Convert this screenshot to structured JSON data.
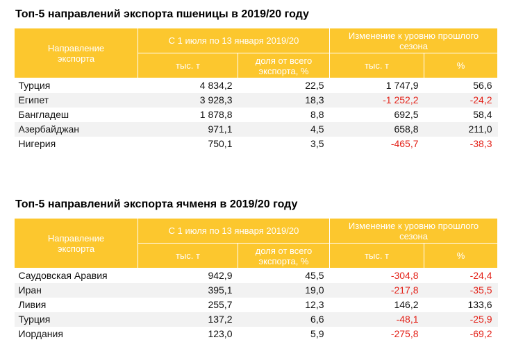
{
  "tables": [
    {
      "title": "Топ-5 направлений экспорта пшеницы в 2019/20 году",
      "headers": {
        "direction": "Направление экспорта",
        "period": "С 1 июля по 13 января 2019/20",
        "change": "Изменение к уровню прошлого сезона",
        "thousand_t": "тыс. т",
        "share": "доля от всего экспорта, %",
        "change_thousand_t": "тыс. т",
        "change_pct": "%"
      },
      "rows": [
        {
          "country": "Турция",
          "volume": "4 834,2",
          "share": "22,5",
          "change_t": "1 747,9",
          "change_pct": "56,6",
          "neg_t": false,
          "neg_pct": false
        },
        {
          "country": "Египет",
          "volume": "3 928,3",
          "share": "18,3",
          "change_t": "-1 252,2",
          "change_pct": "-24,2",
          "neg_t": true,
          "neg_pct": true
        },
        {
          "country": "Бангладеш",
          "volume": "1 878,8",
          "share": "8,8",
          "change_t": "692,5",
          "change_pct": "58,4",
          "neg_t": false,
          "neg_pct": false
        },
        {
          "country": "Азербайджан",
          "volume": "971,1",
          "share": "4,5",
          "change_t": "658,8",
          "change_pct": "211,0",
          "neg_t": false,
          "neg_pct": false
        },
        {
          "country": "Нигерия",
          "volume": "750,1",
          "share": "3,5",
          "change_t": "-465,7",
          "change_pct": "-38,3",
          "neg_t": true,
          "neg_pct": true
        }
      ]
    },
    {
      "title": "Топ-5 направлений экспорта ячменя в 2019/20 году",
      "headers": {
        "direction": "Направление экспорта",
        "period": "С 1 июля по 13 января 2019/20",
        "change": "Изменение к уровню прошлого сезона",
        "thousand_t": "тыс. т",
        "share": "доля от всего экспорта, %",
        "change_thousand_t": "тыс. т",
        "change_pct": "%"
      },
      "rows": [
        {
          "country": "Саудовская Аравия",
          "volume": "942,9",
          "share": "45,5",
          "change_t": "-304,8",
          "change_pct": "-24,4",
          "neg_t": true,
          "neg_pct": true
        },
        {
          "country": "Иран",
          "volume": "395,1",
          "share": "19,0",
          "change_t": "-217,8",
          "change_pct": "-35,5",
          "neg_t": true,
          "neg_pct": true
        },
        {
          "country": "Ливия",
          "volume": "255,7",
          "share": "12,3",
          "change_t": "146,2",
          "change_pct": "133,6",
          "neg_t": false,
          "neg_pct": false
        },
        {
          "country": "Турция",
          "volume": "137,2",
          "share": "6,6",
          "change_t": "-48,1",
          "change_pct": "-25,9",
          "neg_t": true,
          "neg_pct": true
        },
        {
          "country": "Иордания",
          "volume": "123,0",
          "share": "5,9",
          "change_t": "-275,8",
          "change_pct": "-69,2",
          "neg_t": true,
          "neg_pct": true
        }
      ]
    }
  ],
  "colors": {
    "header_bg": "#FCC72E",
    "header_text": "#FFFFFF",
    "negative": "#E32219",
    "row_alt": "#F2F2F2"
  }
}
